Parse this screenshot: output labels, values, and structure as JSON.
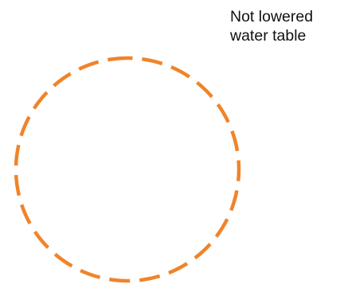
{
  "label": {
    "line1": "Not lowered",
    "line2": "water table"
  },
  "colors": {
    "circle_stroke": "#F0842A",
    "text": "#111111",
    "background": "#ffffff"
  },
  "shape": {
    "kind": "dashed-circle"
  }
}
